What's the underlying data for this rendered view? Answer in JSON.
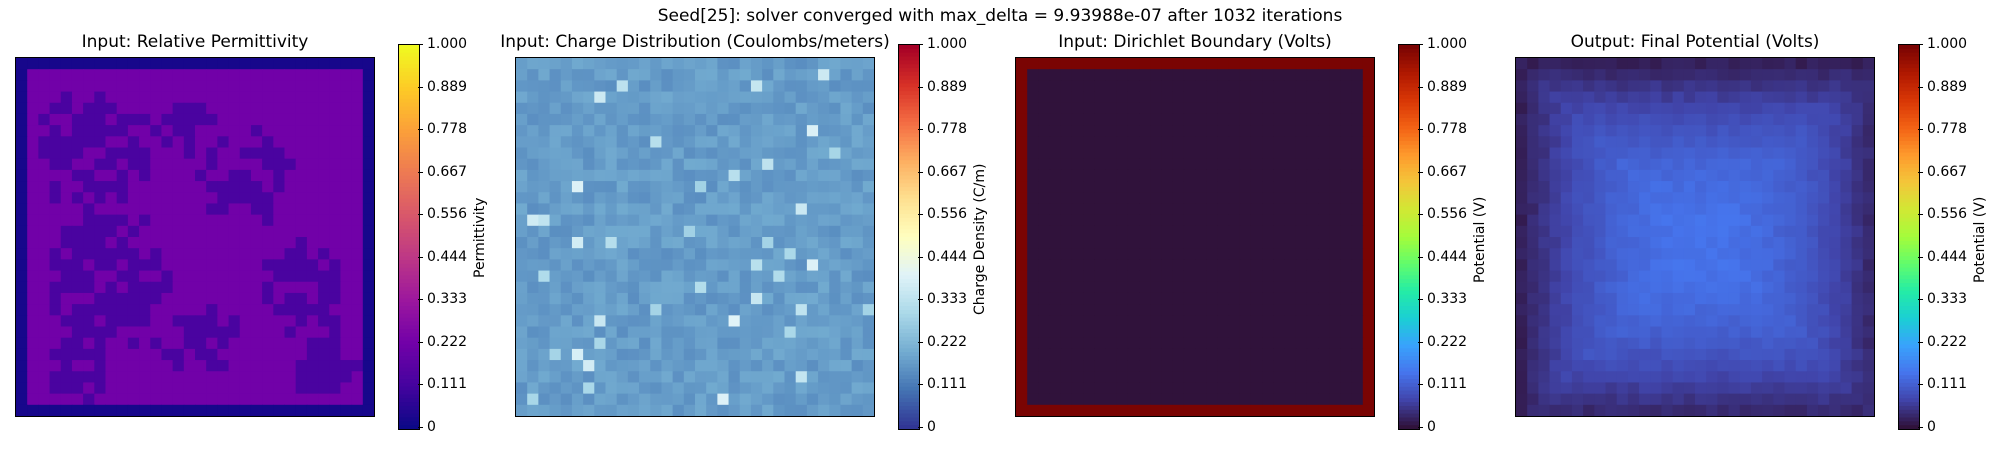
{
  "figure": {
    "title": "Seed[25]: solver converged with max_delta = 9.93988e-07 after 1032 iterations"
  },
  "colorbar_ticks": [
    "1.000",
    "0.889",
    "0.778",
    "0.667",
    "0.556",
    "0.444",
    "0.333",
    "0.222",
    "0.111",
    "0"
  ],
  "chart_data": [
    {
      "type": "heatmap",
      "title": "Input: Relative Permittivity",
      "colorbar_label": "Permittivity",
      "colormap": "plasma",
      "colorbar_range": [
        0,
        1
      ],
      "grid_size": [
        32,
        32
      ],
      "values_summary": "boundary cells ≈ 0.05 (dark blue); interior mix of ≈ 0.25 (purple) background with blob regions ≈ 0.15"
    },
    {
      "type": "heatmap",
      "title": "Input: Charge Distribution (Coulombs/meters)",
      "colorbar_label": "Charge Density (C/m)",
      "colormap": "RdYlBu_r",
      "colorbar_range": [
        0,
        1
      ],
      "grid_size": [
        32,
        32
      ],
      "values_summary": "near-uniform ≈ 0.15–0.20 with sparse brighter cells up to ≈ 0.35"
    },
    {
      "type": "heatmap",
      "title": "Input: Dirichlet Boundary (Volts)",
      "colorbar_label": "Potential (V)",
      "colormap": "turbo",
      "colorbar_range": [
        0,
        1
      ],
      "grid_size": [
        32,
        32
      ],
      "values_summary": "boundary ring = 1.0, interior = 0.0"
    },
    {
      "type": "heatmap",
      "title": "Output: Final Potential (Volts)",
      "colorbar_label": "Potential (V)",
      "colormap": "turbo",
      "colorbar_range": [
        0,
        1
      ],
      "grid_size": [
        32,
        32
      ],
      "values_summary": "low ≈ 0.02 at edges rising to ≈ 0.12 in center"
    }
  ],
  "colors": {
    "plasma": [
      "#0d0887",
      "#46039f",
      "#7201a8",
      "#9c179e",
      "#bd3786",
      "#d8576b",
      "#ed7953",
      "#fb9f3a",
      "#fdca26",
      "#f0f921"
    ],
    "RdYlBu_r": [
      "#313695",
      "#4575b4",
      "#74add1",
      "#abd9e9",
      "#e0f3f8",
      "#ffffbf",
      "#fee090",
      "#fdae61",
      "#f46d43",
      "#d73027",
      "#a50026"
    ],
    "turbo": [
      "#30123b",
      "#4145ab",
      "#4675ed",
      "#39a2fc",
      "#1bcfd4",
      "#24eca6",
      "#61fc6c",
      "#a4fc3b",
      "#d1e834",
      "#f3c63a",
      "#fe9b2d",
      "#f36315",
      "#d93806",
      "#b11901",
      "#7a0403"
    ]
  }
}
